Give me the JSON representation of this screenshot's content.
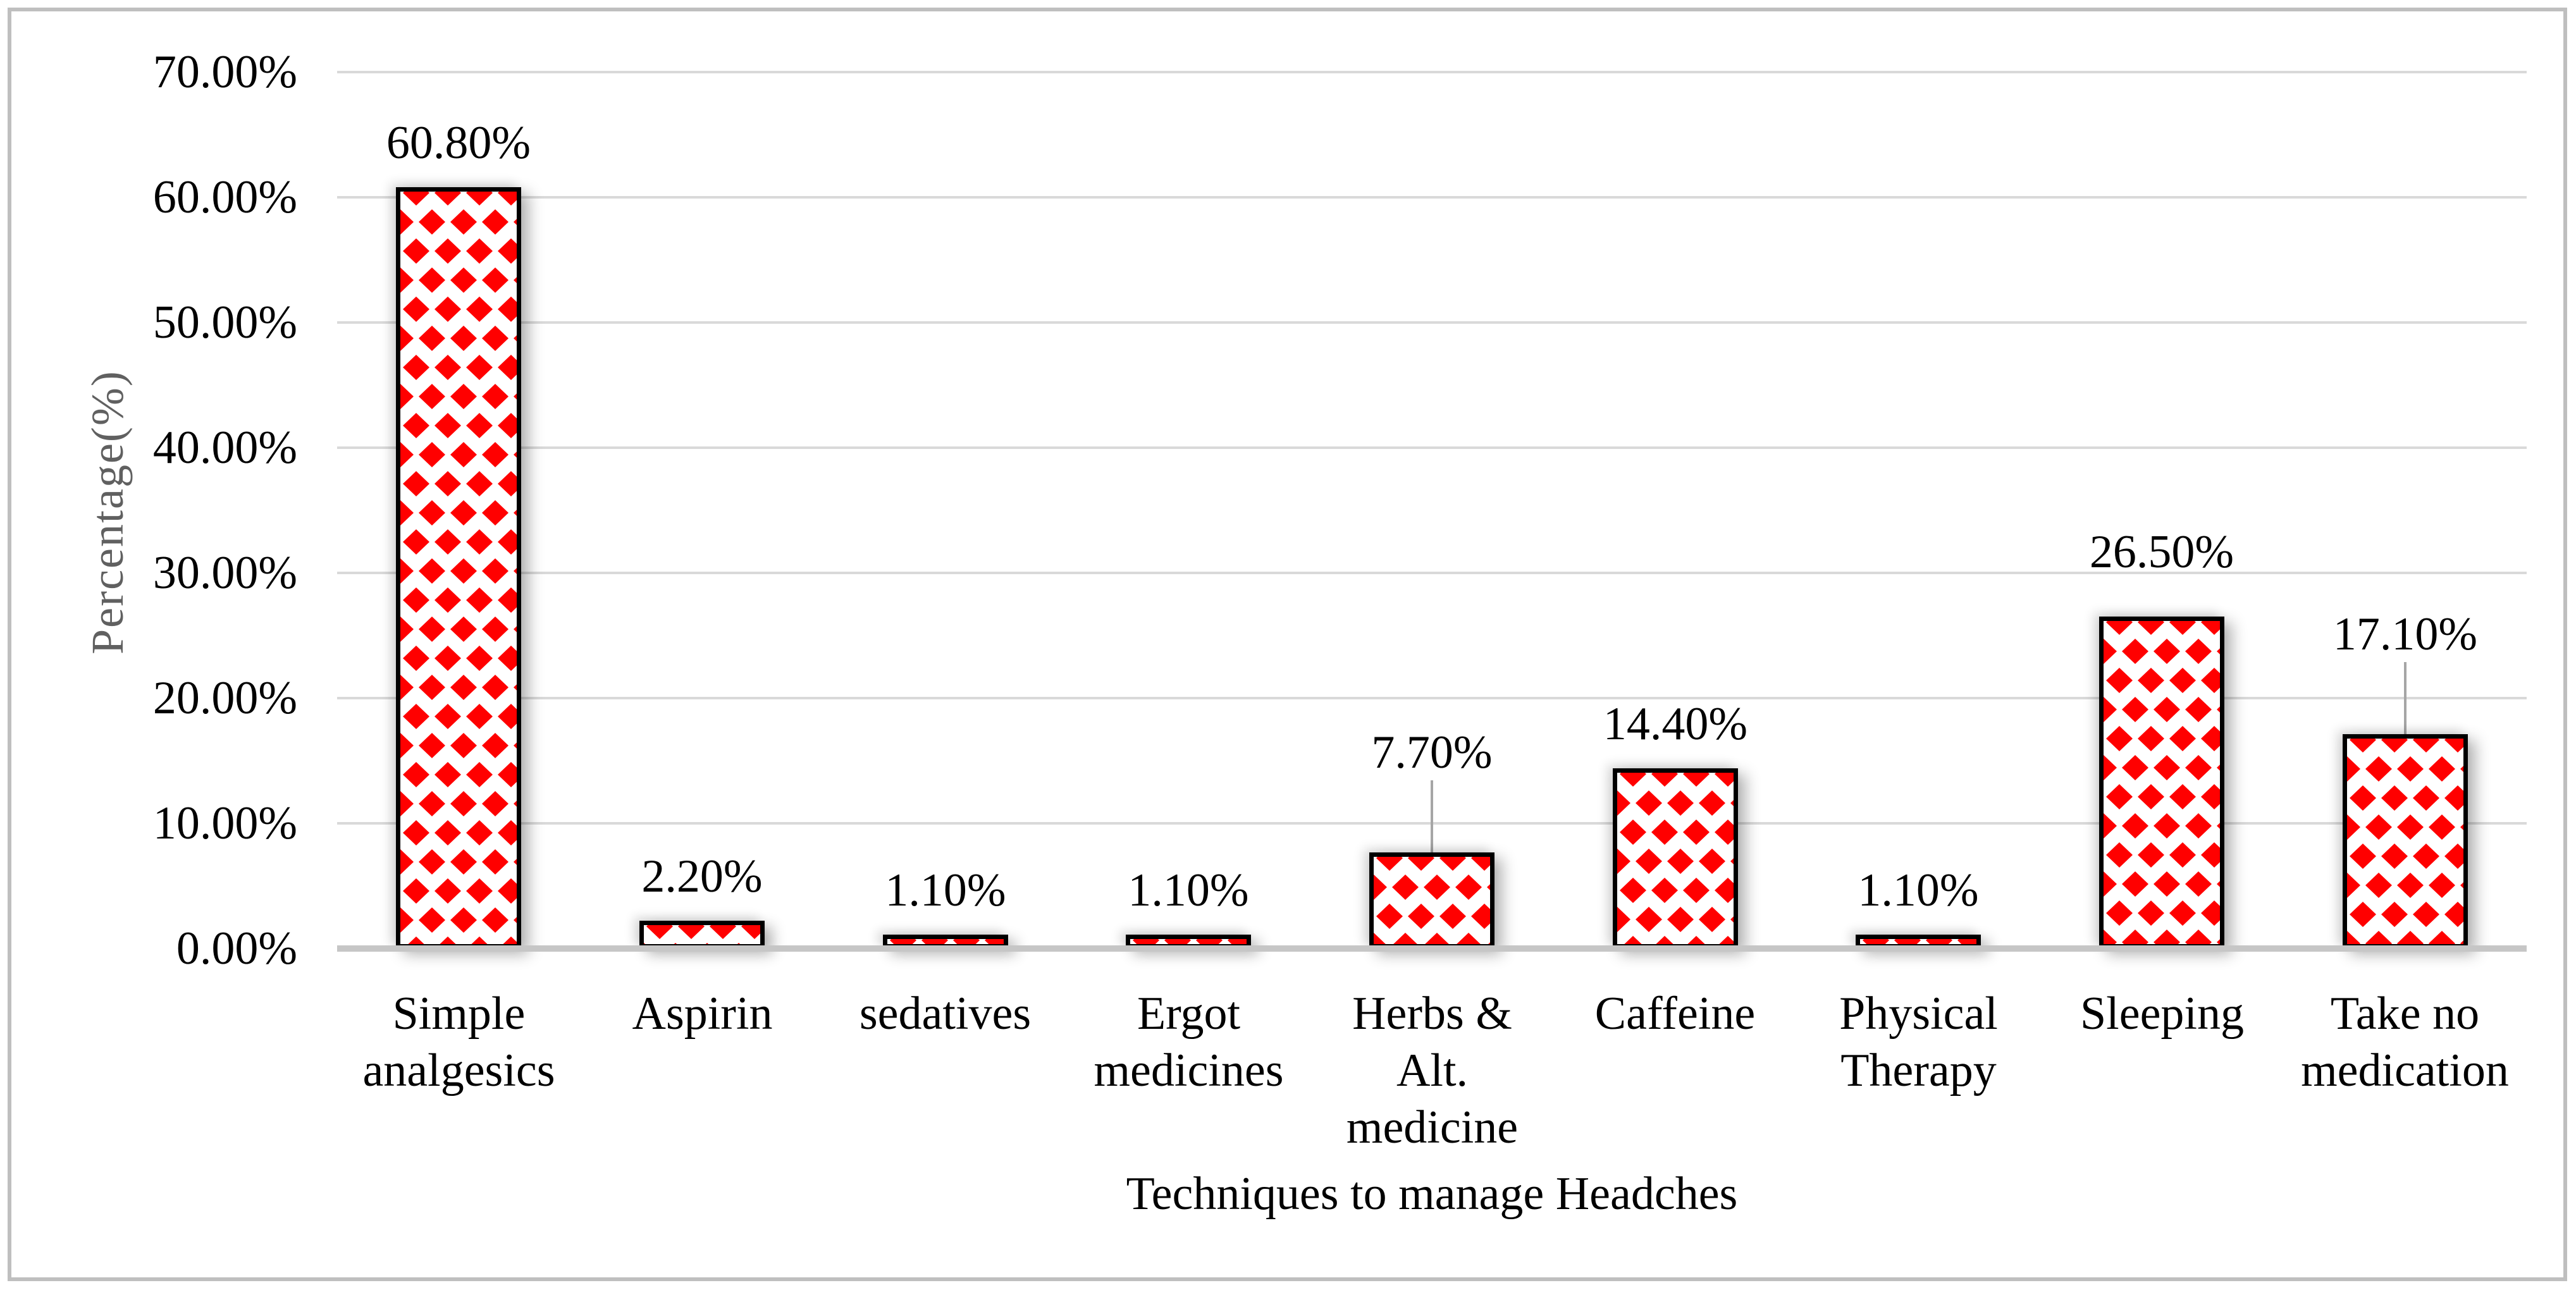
{
  "chart_data": {
    "type": "bar",
    "title": "",
    "xlabel": "Techniques to manage Headches",
    "ylabel": "Percentage(%)",
    "ylim": [
      0,
      70
    ],
    "ytick_step": 10,
    "ytick_labels": [
      "0.00%",
      "10.00%",
      "20.00%",
      "30.00%",
      "40.00%",
      "50.00%",
      "60.00%",
      "70.00%"
    ],
    "grid": true,
    "legend": "none",
    "categories": [
      "Simple analgesics",
      "Aspirin",
      "sedatives",
      "Ergot medicines",
      "Herbs & Alt. medicine",
      "Caffeine",
      "Physical Therapy",
      "Sleeping",
      "Take no medication"
    ],
    "category_display_lines": [
      [
        "Simple",
        "analgesics"
      ],
      [
        "Aspirin"
      ],
      [
        "sedatives"
      ],
      [
        "Ergot",
        "medicines"
      ],
      [
        "Herbs &",
        "Alt.",
        "medicine"
      ],
      [
        "Caffeine"
      ],
      [
        "Physical",
        "Therapy"
      ],
      [
        "Sleeping"
      ],
      [
        "Take no",
        "medication"
      ]
    ],
    "values": [
      60.8,
      2.2,
      1.1,
      1.1,
      7.7,
      14.4,
      1.1,
      26.5,
      17.1
    ],
    "data_labels": [
      "60.80%",
      "2.20%",
      "1.10%",
      "1.10%",
      "7.70%",
      "14.40%",
      "1.10%",
      "26.50%",
      "17.10%"
    ],
    "label_leader_lines": [
      false,
      false,
      false,
      false,
      true,
      false,
      false,
      false,
      true
    ],
    "bar_fill": "red-diamond-pattern",
    "colors": {
      "bar_pattern_red": "#FF0000",
      "bar_background": "#FFFFFF",
      "bar_border": "#000000",
      "gridline": "#D9D9D9",
      "axis_line": "#C6C6C6",
      "leader_line": "#A6A6A6",
      "y_axis_title": "#606060",
      "text": "#000000",
      "frame_border": "#BFBFBF"
    }
  }
}
